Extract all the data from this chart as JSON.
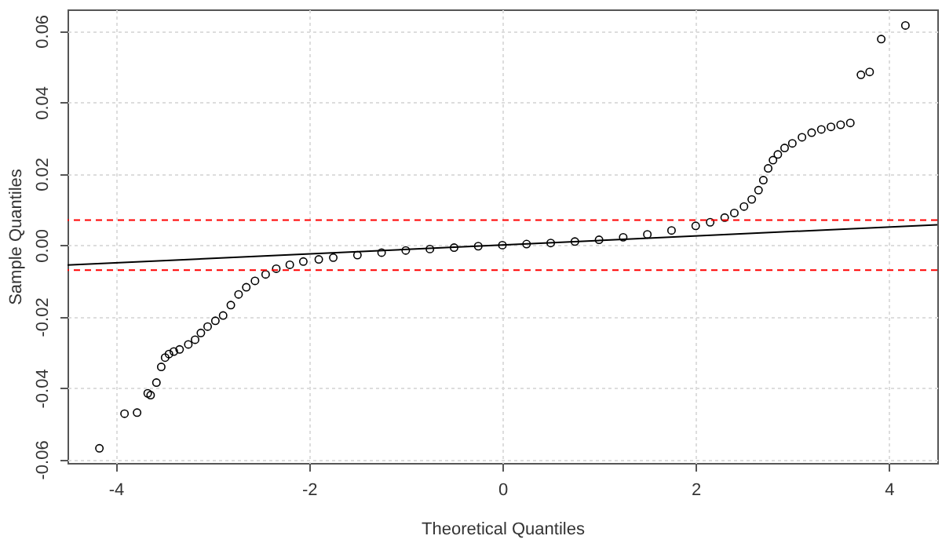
{
  "chart_data": {
    "type": "scatter",
    "xlabel": "Theoretical Quantiles",
    "ylabel": "Sample Quantiles",
    "xlim": [
      -4.5,
      4.5
    ],
    "ylim": [
      -0.061,
      0.066
    ],
    "xticks": [
      -4,
      -2,
      0,
      2,
      4
    ],
    "yticks": [
      {
        "value": -0.06,
        "label": "-0.06"
      },
      {
        "value": -0.04,
        "label": "-0.04"
      },
      {
        "value": -0.02,
        "label": "-0.02"
      },
      {
        "value": 0,
        "label": "0.00"
      },
      {
        "value": 0.02,
        "label": "0.02"
      },
      {
        "value": 0.04,
        "label": "0.04"
      },
      {
        "value": 0.06,
        "label": "0.06"
      }
    ],
    "grid": true,
    "marker": "circle",
    "series": [
      {
        "color": "#000000",
        "x": [
          -4.17,
          -3.91,
          -3.78,
          -3.67,
          -3.64,
          -3.58,
          -3.53,
          -3.49,
          -3.45,
          -3.4,
          -3.34,
          -3.25,
          -3.18,
          -3.12,
          -3.05,
          -2.97,
          -2.89,
          -2.81,
          -2.73,
          -2.65,
          -2.56,
          -2.45,
          -2.34,
          -2.2,
          -2.06,
          -1.9,
          -1.75,
          -1.5,
          -1.25,
          -1,
          -0.75,
          -0.5,
          -0.25,
          0,
          0.25,
          0.5,
          0.75,
          1,
          1.25,
          1.5,
          1.75,
          2,
          2.15,
          2.3,
          2.4,
          2.5,
          2.58,
          2.65,
          2.7,
          2.75,
          2.8,
          2.85,
          2.92,
          3,
          3.1,
          3.2,
          3.3,
          3.4,
          3.5,
          3.6,
          3.71,
          3.8,
          3.92,
          4.17
        ],
        "values": [
          -0.0569,
          -0.0472,
          -0.0469,
          -0.0415,
          -0.042,
          -0.0385,
          -0.0341,
          -0.0315,
          -0.0305,
          -0.0298,
          -0.0292,
          -0.0278,
          -0.0265,
          -0.0246,
          -0.0228,
          -0.0212,
          -0.0197,
          -0.0168,
          -0.0138,
          -0.0118,
          -0.01,
          -0.0082,
          -0.0066,
          -0.0055,
          -0.0046,
          -0.004,
          -0.0035,
          -0.0028,
          -0.0021,
          -0.0015,
          -0.0011,
          -0.0007,
          -0.0003,
          0,
          0.0003,
          0.0006,
          0.001,
          0.0015,
          0.0022,
          0.003,
          0.0041,
          0.0054,
          0.0064,
          0.0077,
          0.009,
          0.0108,
          0.0128,
          0.0154,
          0.0182,
          0.0215,
          0.0238,
          0.0254,
          0.0272,
          0.0285,
          0.0302,
          0.0315,
          0.0324,
          0.0331,
          0.0337,
          0.0342,
          0.0477,
          0.0485,
          0.0577,
          0.0615
        ]
      },
      {
        "type": "line",
        "marker": "none",
        "color": "#000000",
        "x": [
          -4.5,
          4.5
        ],
        "values": [
          -0.0056,
          0.0057
        ]
      }
    ],
    "ref_lines": [
      {
        "axis": "y",
        "value": 0.007,
        "color": "#ff0000",
        "line_style": "dashed"
      },
      {
        "axis": "y",
        "value": -0.007,
        "color": "#ff0000",
        "line_style": "dashed"
      }
    ]
  }
}
